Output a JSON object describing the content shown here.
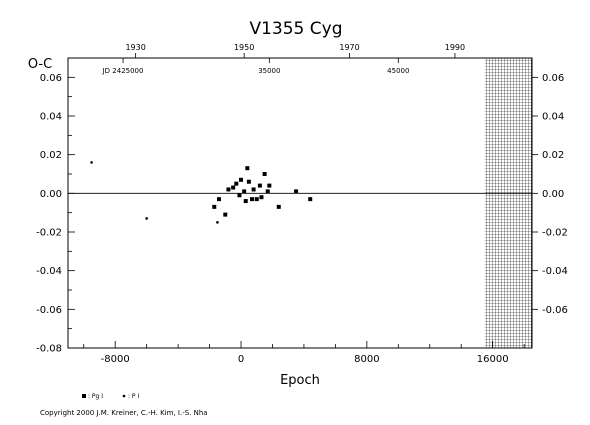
{
  "chart_data": {
    "type": "scatter",
    "title": "V1355  Cyg",
    "ylabel": "O-C",
    "xlabel": "Epoch",
    "xlim": [
      -11000,
      18500
    ],
    "ylim": [
      -0.08,
      0.07
    ],
    "x_ticks": [
      -8000,
      0,
      8000,
      16000
    ],
    "x_tick_labels": [
      "-8000",
      "0",
      "8000",
      "16000"
    ],
    "y_ticks": [
      -0.08,
      -0.06,
      -0.04,
      -0.02,
      0.0,
      0.02,
      0.04,
      0.06
    ],
    "y_tick_labels": [
      "-0.08",
      "-0.06",
      "-0.04",
      "-0.02",
      "0.00",
      "0.02",
      "0.04",
      "0.06"
    ],
    "y_ticks_right": [
      -0.06,
      -0.04,
      -0.02,
      0.0,
      0.02,
      0.04,
      0.06
    ],
    "y_tick_labels_right": [
      "-0.06",
      "-0.04",
      "-0.02",
      "0.00",
      "0.02",
      "0.04",
      "0.06"
    ],
    "top_year_ticks": [
      {
        "x": -6700,
        "label": "1930"
      },
      {
        "x": 200,
        "label": "1950"
      },
      {
        "x": 6900,
        "label": "1970"
      },
      {
        "x": 13600,
        "label": "1990"
      }
    ],
    "jd_ticks": [
      {
        "x": -7500,
        "label": "JD 2425000"
      },
      {
        "x": 1800,
        "label": "35000"
      },
      {
        "x": 10000,
        "label": "45000"
      }
    ],
    "grid": false,
    "hatched_region": {
      "x_start": 15500,
      "x_end": 18500
    },
    "series": [
      {
        "name": ": Pg I",
        "marker": "square",
        "points": [
          [
            -1700,
            -0.007
          ],
          [
            -1400,
            -0.003
          ],
          [
            -1000,
            -0.011
          ],
          [
            -800,
            0.002
          ],
          [
            -500,
            0.003
          ],
          [
            -300,
            0.005
          ],
          [
            -100,
            -0.001
          ],
          [
            0,
            0.007
          ],
          [
            200,
            0.001
          ],
          [
            300,
            -0.004
          ],
          [
            400,
            0.013
          ],
          [
            500,
            0.006
          ],
          [
            700,
            -0.003
          ],
          [
            800,
            0.002
          ],
          [
            1000,
            -0.003
          ],
          [
            1200,
            0.004
          ],
          [
            1300,
            -0.002
          ],
          [
            1500,
            0.01
          ],
          [
            1700,
            0.001
          ],
          [
            1800,
            0.004
          ],
          [
            2400,
            -0.007
          ],
          [
            3500,
            0.001
          ],
          [
            4400,
            -0.003
          ]
        ]
      },
      {
        "name": ": P I",
        "marker": "dot",
        "points": [
          [
            -9500,
            0.016
          ],
          [
            -6000,
            -0.013
          ],
          [
            -1500,
            -0.015
          ]
        ]
      }
    ],
    "copyright": "Copyright 2000 J.M. Kreiner, C.-H. Kim, I.-S. Nha"
  }
}
